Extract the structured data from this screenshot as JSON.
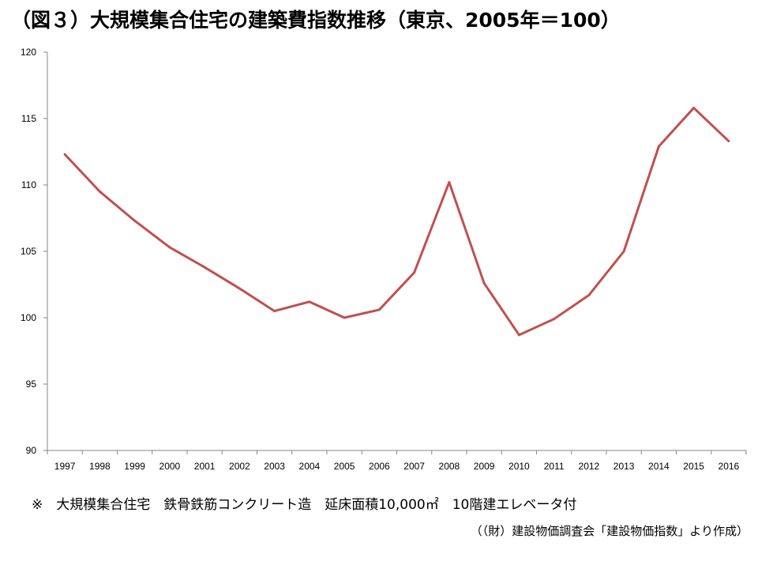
{
  "title": "（図３）大規模集合住宅の建築費指数推移（東京、2005年＝100）",
  "note": "※　大規模集合住宅　鉄骨鉄筋コンクリート造　延床面積10,000㎡　10階建エレベータ付",
  "source": "（（財）建設物価調査会「建設物価指数」より作成）",
  "chart_data": {
    "type": "line",
    "title": "（図３）大規模集合住宅の建築費指数推移（東京、2005年＝100）",
    "xlabel": "",
    "ylabel": "",
    "ylim": [
      90,
      120
    ],
    "yticks": [
      90,
      95,
      100,
      105,
      110,
      115,
      120
    ],
    "grid": false,
    "categories": [
      "1997",
      "1998",
      "1999",
      "2000",
      "2001",
      "2002",
      "2003",
      "2004",
      "2005",
      "2006",
      "2007",
      "2008",
      "2009",
      "2010",
      "2011",
      "2012",
      "2013",
      "2014",
      "2015",
      "2016"
    ],
    "series": [
      {
        "color": "#c0504d",
        "values": [
          112.3,
          109.5,
          107.3,
          105.3,
          103.8,
          102.2,
          100.5,
          101.2,
          100.0,
          100.6,
          103.4,
          110.2,
          102.6,
          98.7,
          99.9,
          101.7,
          105.0,
          112.9,
          115.8,
          113.3
        ]
      }
    ]
  }
}
